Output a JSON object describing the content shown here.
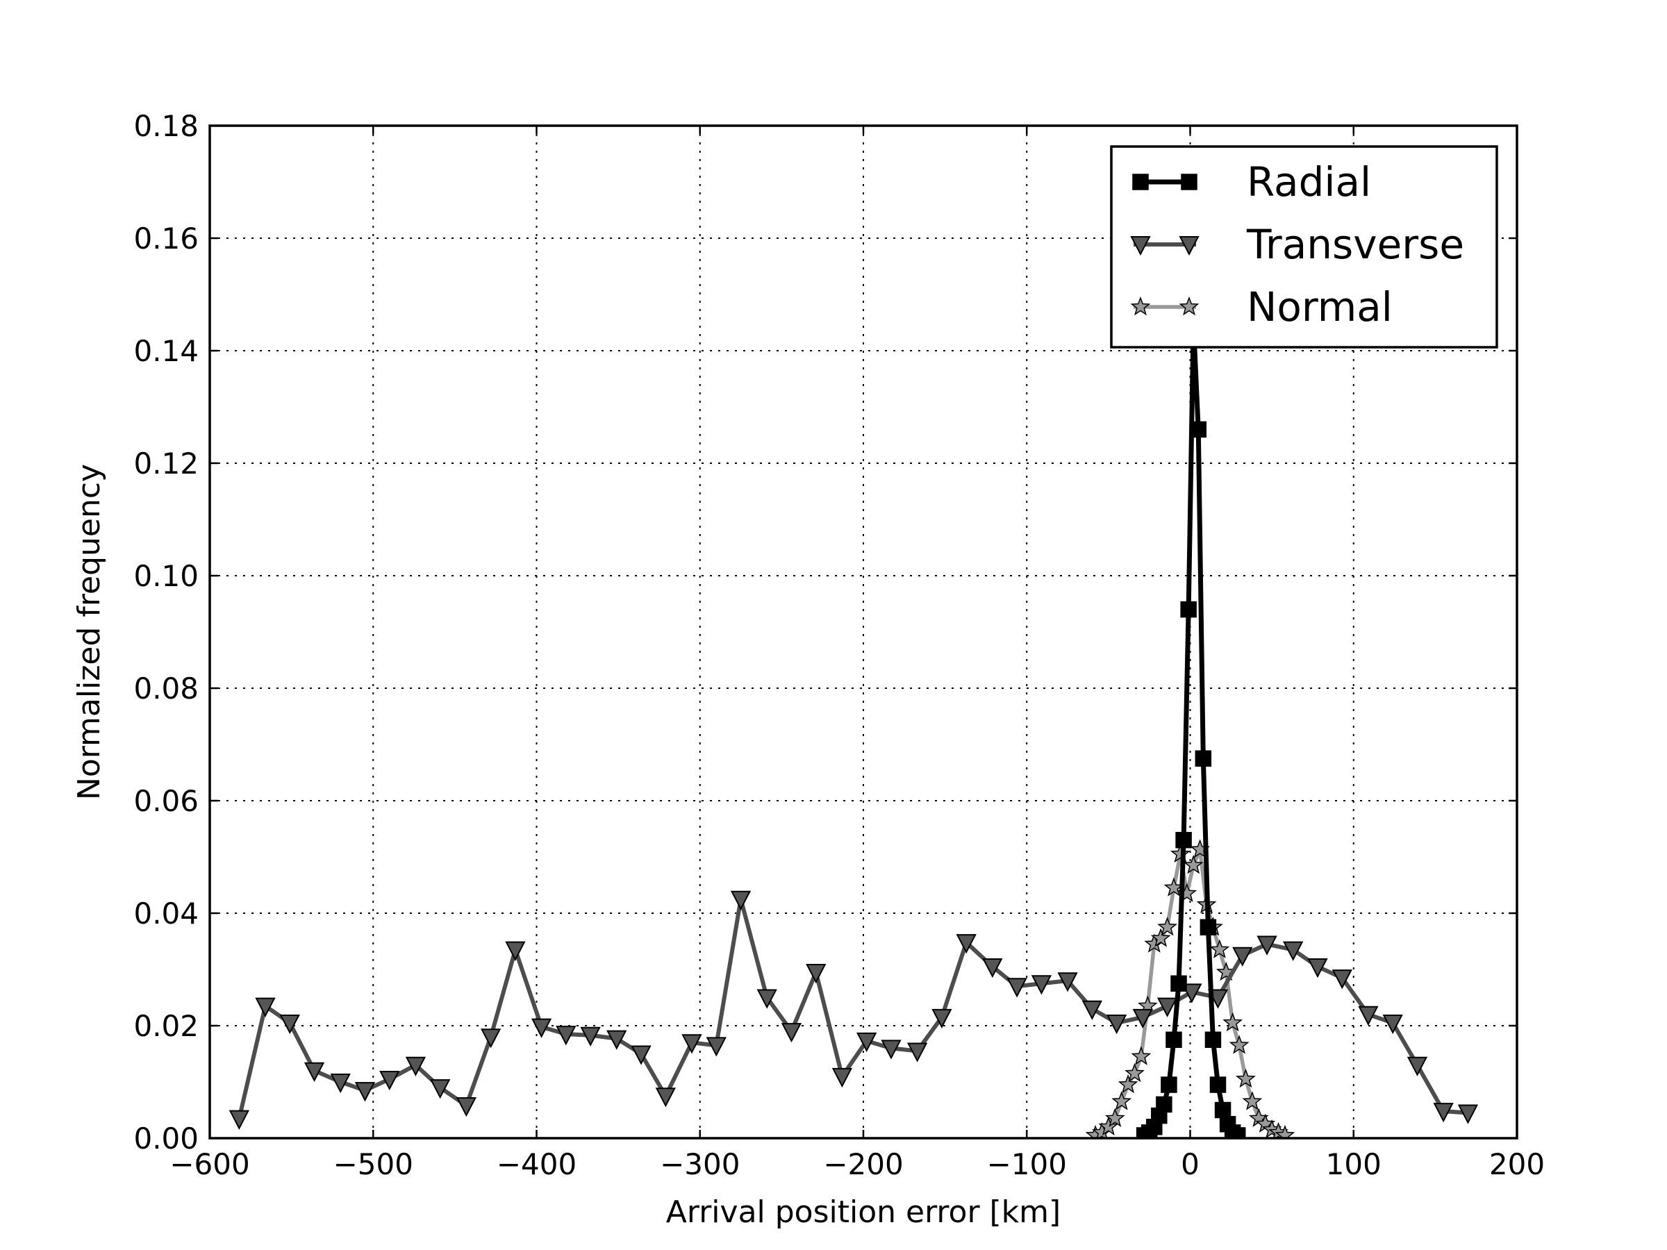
{
  "chart_data": {
    "type": "line",
    "title": "",
    "xlabel": "Arrival position error [km]",
    "ylabel": "Normalized frequency",
    "xlim": [
      -600,
      200
    ],
    "ylim": [
      0,
      0.18
    ],
    "xticks": [
      -600,
      -500,
      -400,
      -300,
      -200,
      -100,
      0,
      100,
      200
    ],
    "xtick_labels": [
      "−600",
      "−500",
      "−400",
      "−300",
      "−200",
      "−100",
      "0",
      "100",
      "200"
    ],
    "yticks": [
      0,
      0.02,
      0.04,
      0.06,
      0.08,
      0.1,
      0.12,
      0.14,
      0.16,
      0.18
    ],
    "ytick_labels": [
      "0.00",
      "0.02",
      "0.04",
      "0.06",
      "0.08",
      "0.10",
      "0.12",
      "0.14",
      "0.16",
      "0.18"
    ],
    "grid": true,
    "legend_position": "top-right",
    "series": [
      {
        "name": "Radial",
        "color": "#000000",
        "marker": "square",
        "x": [
          -28,
          -25,
          -22,
          -19,
          -16,
          -13,
          -10,
          -7,
          -4,
          -1,
          2,
          5,
          8,
          11,
          14,
          17,
          20,
          23,
          26,
          29
        ],
        "y": [
          0.0005,
          0.001,
          0.002,
          0.004,
          0.006,
          0.0095,
          0.0175,
          0.0275,
          0.053,
          0.094,
          0.145,
          0.126,
          0.0675,
          0.0375,
          0.0175,
          0.0095,
          0.005,
          0.0025,
          0.001,
          0.0005
        ]
      },
      {
        "name": "Transverse",
        "color": "#4d4d4d",
        "marker": "triangle-down",
        "x": [
          -582,
          -566,
          -551,
          -536,
          -520,
          -505,
          -490,
          -474,
          -459,
          -443,
          -428,
          -413,
          -397,
          -382,
          -367,
          -351,
          -336,
          -321,
          -305,
          -290,
          -275,
          -259,
          -244,
          -229,
          -213,
          -198,
          -183,
          -167,
          -152,
          -137,
          -121,
          -106,
          -91,
          -75,
          -60,
          -45,
          -29,
          -14,
          1,
          17,
          32,
          47,
          63,
          78,
          93,
          109,
          124,
          139,
          155,
          170
        ],
        "y": [
          0.0035,
          0.0235,
          0.0205,
          0.012,
          0.01,
          0.0085,
          0.0105,
          0.013,
          0.009,
          0.0058,
          0.018,
          0.0335,
          0.0198,
          0.0185,
          0.0183,
          0.0177,
          0.015,
          0.0075,
          0.017,
          0.0165,
          0.0425,
          0.025,
          0.019,
          0.0295,
          0.011,
          0.0173,
          0.016,
          0.0155,
          0.0215,
          0.0348,
          0.0305,
          0.027,
          0.0275,
          0.028,
          0.023,
          0.0205,
          0.0215,
          0.0235,
          0.026,
          0.025,
          0.0325,
          0.0345,
          0.0335,
          0.0305,
          0.0285,
          0.022,
          0.0205,
          0.013,
          0.0048,
          0.0045
        ]
      },
      {
        "name": "Normal",
        "color": "#999999",
        "marker": "star",
        "x": [
          -58,
          -54,
          -50,
          -46,
          -42,
          -38,
          -34,
          -30,
          -26,
          -22,
          -18,
          -14,
          -10,
          -6,
          -2,
          2,
          6,
          10,
          14,
          18,
          22,
          26,
          30,
          34,
          38,
          42,
          46,
          50,
          54,
          58
        ],
        "y": [
          0.0005,
          0.001,
          0.002,
          0.0035,
          0.0065,
          0.0095,
          0.0115,
          0.0145,
          0.0235,
          0.0345,
          0.0355,
          0.0375,
          0.0445,
          0.0505,
          0.0435,
          0.0485,
          0.0513,
          0.0415,
          0.0375,
          0.0335,
          0.0295,
          0.0205,
          0.0165,
          0.0105,
          0.0065,
          0.0035,
          0.0025,
          0.0015,
          0.001,
          0.0005
        ]
      }
    ]
  }
}
